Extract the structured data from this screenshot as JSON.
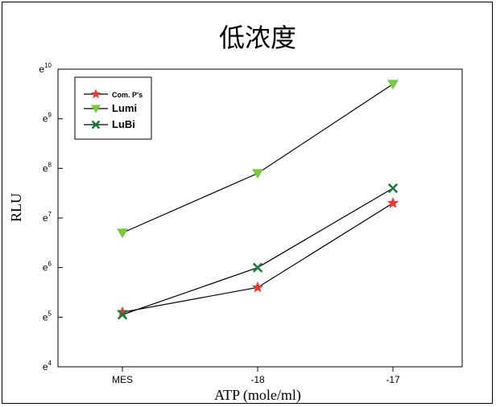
{
  "chart_data": {
    "type": "line",
    "title": "低浓度",
    "xlabel": "ATP (mole/ml)",
    "ylabel": "RLU",
    "categories": [
      "MES",
      "-18",
      "-17"
    ],
    "y_scale": "log_e",
    "ylim_exp": [
      4,
      10
    ],
    "y_ticks": [
      {
        "base": "e",
        "exp": "4"
      },
      {
        "base": "e",
        "exp": "5"
      },
      {
        "base": "e",
        "exp": "6"
      },
      {
        "base": "e",
        "exp": "7"
      },
      {
        "base": "e",
        "exp": "8"
      },
      {
        "base": "e",
        "exp": "9"
      },
      {
        "base": "e",
        "exp": "10"
      }
    ],
    "legend_position": "top-left",
    "series": [
      {
        "name": "Com. P's",
        "marker": "star",
        "color": "#e8392f",
        "log_values": [
          5.1,
          5.6,
          7.3
        ]
      },
      {
        "name": "Lumi",
        "marker": "triangle-down",
        "color": "#7ac943",
        "log_values": [
          6.7,
          7.9,
          9.7
        ]
      },
      {
        "name": "LuBi",
        "marker": "x",
        "color": "#1b7a3c",
        "log_values": [
          5.05,
          6.0,
          7.6
        ]
      }
    ]
  }
}
